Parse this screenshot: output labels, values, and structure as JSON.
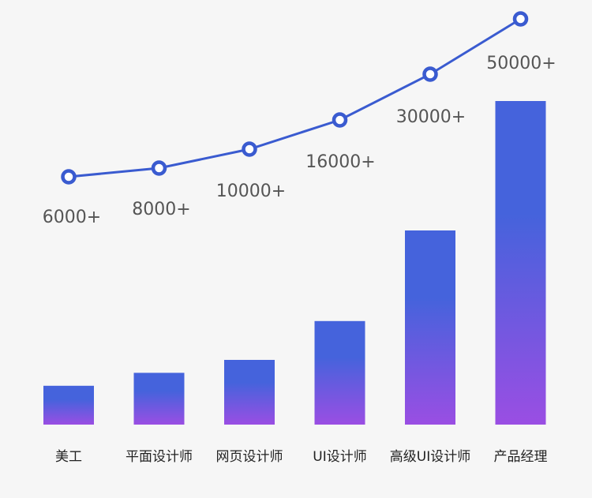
{
  "chart_data": {
    "type": "bar",
    "categories": [
      "美工",
      "平面设计师",
      "网页设计师",
      "UI设计师",
      "高级UI设计师",
      "产品经理"
    ],
    "bar_values": [
      6000,
      8000,
      10000,
      16000,
      30000,
      50000
    ],
    "line_values": [
      6000,
      8000,
      10000,
      16000,
      30000,
      50000
    ],
    "value_labels": [
      "6000+",
      "8000+",
      "10000+",
      "16000+",
      "30000+",
      "50000+"
    ],
    "grid": false,
    "legend": "none"
  },
  "colors": {
    "background": "#f6f6f6",
    "bar_top": "#4563dc",
    "bar_bottom": "#9a4ee3",
    "line": "#3a5bd0",
    "marker_fill": "#ffffff",
    "value_text": "#555555",
    "category_text": "#222222"
  }
}
